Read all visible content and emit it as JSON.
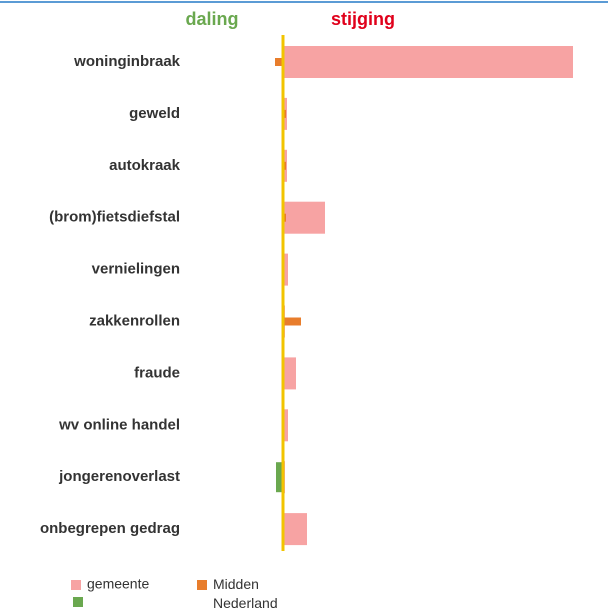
{
  "chart_data": {
    "type": "bar",
    "orientation": "horizontal",
    "header_left": "daling",
    "header_right": "stijging",
    "categories": [
      "woninginbraak",
      "geweld",
      "autokraak",
      "(brom)fietsdiefstal",
      "vernielingen",
      "zakkenrollen",
      "fraude",
      "wv online handel",
      "jongerenoverlast",
      "onbegrepen gedrag"
    ],
    "series": [
      {
        "name": "gemeente",
        "color": "#f7a3a3",
        "values": [
          290,
          4,
          4,
          42,
          5,
          2,
          13,
          5,
          2,
          24
        ]
      },
      {
        "name": "Midden Nederland",
        "color": "#e87d2c",
        "values": [
          -8,
          3,
          3,
          3,
          1,
          18,
          1,
          1,
          0,
          1
        ]
      },
      {
        "color": "#6aa84f",
        "values": [
          0,
          0,
          0,
          0,
          0,
          0,
          0,
          0,
          -7,
          0
        ]
      }
    ],
    "xlim": [
      -100,
      320
    ],
    "xticks": [
      0
    ],
    "zero_line_color": "#f2c400"
  }
}
